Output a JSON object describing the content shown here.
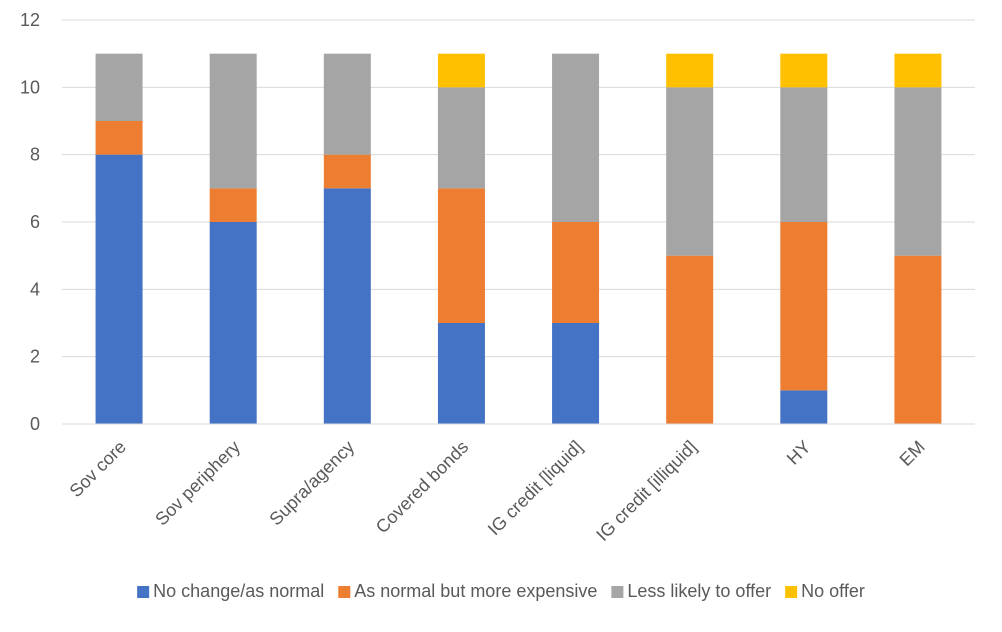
{
  "chart_data": {
    "type": "bar",
    "stacked": true,
    "categories": [
      "Sov core",
      "Sov periphery",
      "Supra/agency",
      "Covered bonds",
      "IG credit [liquid]",
      "IG credit [illiquid]",
      "HY",
      "EM"
    ],
    "series": [
      {
        "name": "No change/as normal",
        "color": "#4472c4",
        "values": [
          8,
          6,
          7,
          3,
          3,
          0,
          1,
          0
        ]
      },
      {
        "name": "As normal but more expensive",
        "color": "#ed7d31",
        "values": [
          1,
          1,
          1,
          4,
          3,
          5,
          5,
          5
        ]
      },
      {
        "name": "Less likely to offer",
        "color": "#a5a5a5",
        "values": [
          2,
          4,
          3,
          3,
          5,
          5,
          4,
          5
        ]
      },
      {
        "name": "No offer",
        "color": "#ffc000",
        "values": [
          0,
          0,
          0,
          1,
          0,
          1,
          1,
          1
        ]
      }
    ],
    "yticks": [
      0,
      2,
      4,
      6,
      8,
      10,
      12
    ],
    "ylim": [
      0,
      12
    ],
    "grid": true,
    "legend": "bottom",
    "title": "",
    "xlabel": "",
    "ylabel": ""
  }
}
